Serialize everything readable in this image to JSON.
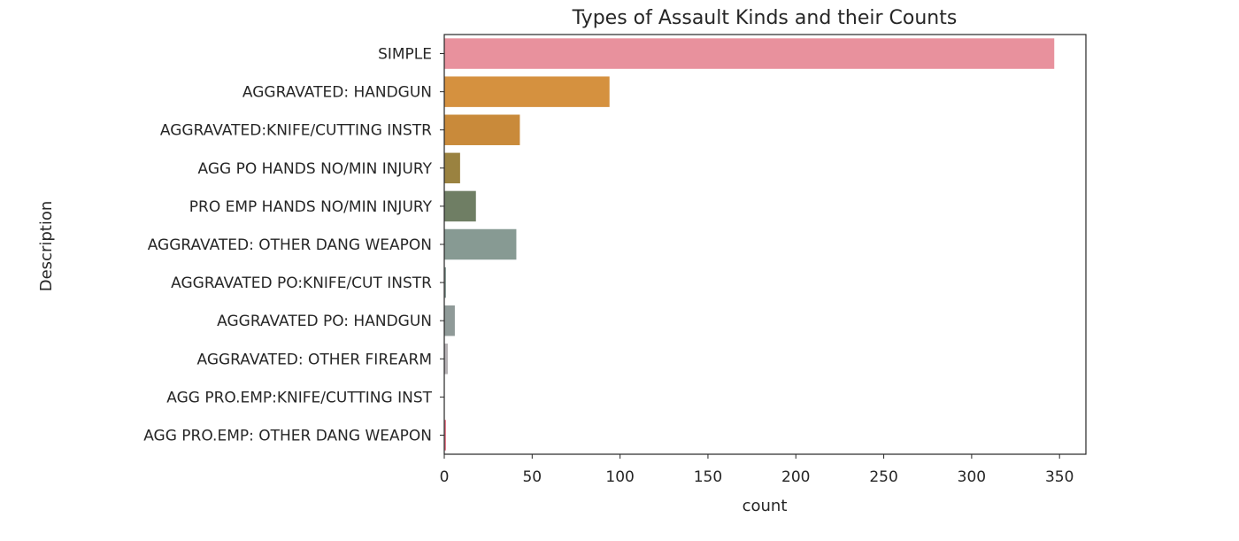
{
  "chart_data": {
    "type": "bar",
    "orientation": "horizontal",
    "title": "Types of Assault Kinds and their Counts",
    "xlabel": "count",
    "ylabel": "Description",
    "xlim": [
      0,
      365
    ],
    "xticks": [
      0,
      50,
      100,
      150,
      200,
      250,
      300,
      350
    ],
    "grid": false,
    "categories": [
      "SIMPLE",
      "AGGRAVATED: HANDGUN",
      "AGGRAVATED:KNIFE/CUTTING INSTR",
      "AGG PO HANDS NO/MIN INJURY",
      "PRO EMP HANDS NO/MIN INJURY",
      "AGGRAVATED: OTHER DANG WEAPON",
      "AGGRAVATED PO:KNIFE/CUT INSTR",
      "AGGRAVATED PO: HANDGUN",
      "AGGRAVATED: OTHER FIREARM",
      "AGG PRO.EMP:KNIFE/CUTTING INST",
      "AGG PRO.EMP: OTHER DANG WEAPON"
    ],
    "values": [
      347,
      94,
      43,
      9,
      18,
      41,
      1,
      6,
      2,
      0,
      1
    ],
    "colors": [
      "#e8919d",
      "#d5913f",
      "#c98a3a",
      "#9a8240",
      "#6f7e64",
      "#879a93",
      "#8a9c97",
      "#8f9a98",
      "#b4b0b3",
      "#d9a0b0",
      "#e87c8e"
    ]
  }
}
